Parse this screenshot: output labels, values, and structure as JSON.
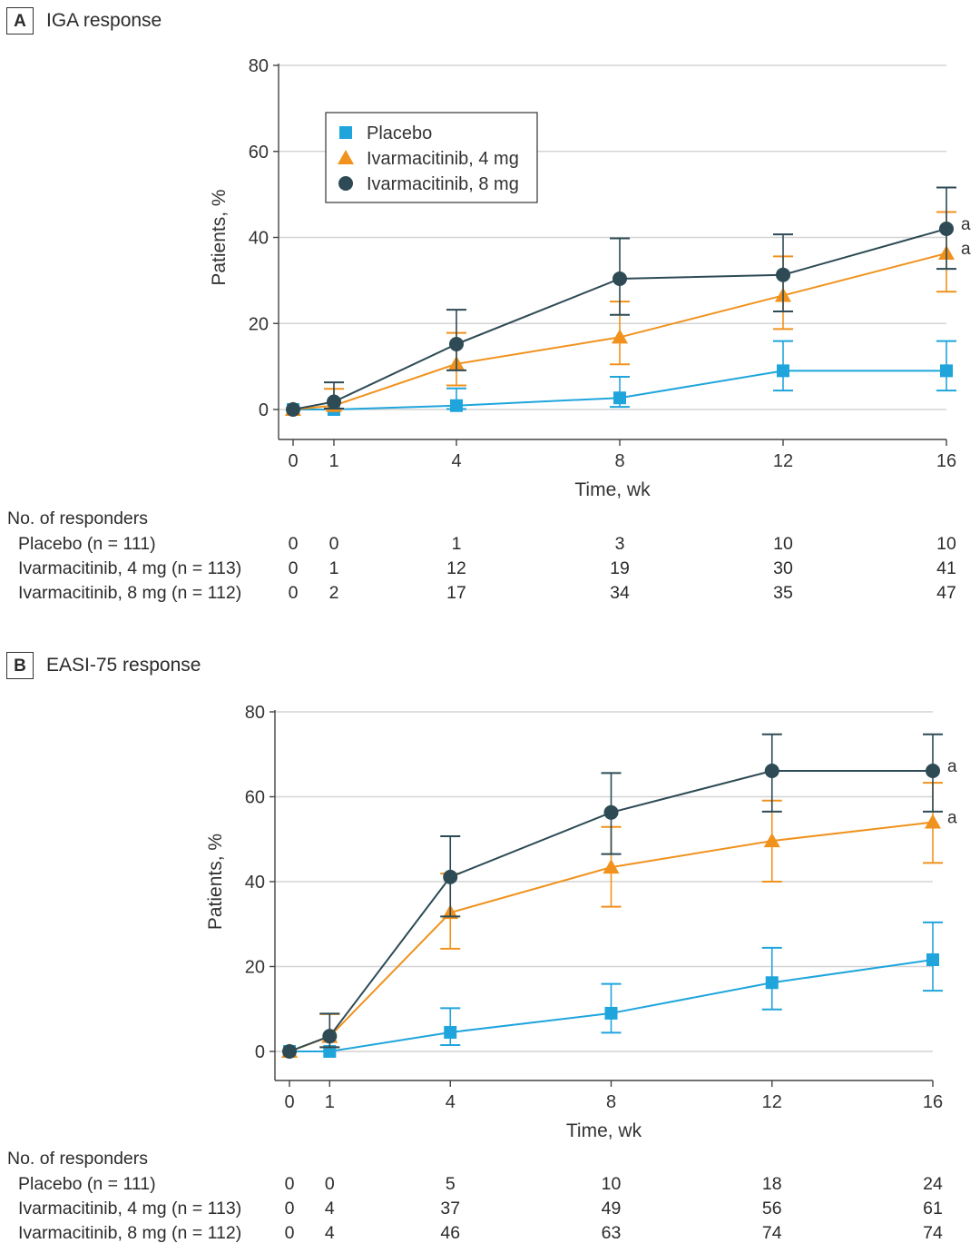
{
  "colors": {
    "placebo": "#1fa5dc",
    "ivar4": "#f0921d",
    "ivar8": "#2d4a55",
    "grid": "#d4d4d4",
    "axis": "#444444"
  },
  "chart_data": [
    {
      "type": "line",
      "panel_letter": "A",
      "title": "IGA response",
      "xlabel": "Time, wk",
      "ylabel": "Patients, %",
      "x": [
        0,
        1,
        4,
        8,
        12,
        16
      ],
      "xlim": [
        0,
        16
      ],
      "ylim": [
        -7,
        80
      ],
      "yticks": [
        0,
        20,
        40,
        60,
        80
      ],
      "grid": true,
      "legend_position": "top-left",
      "series": [
        {
          "name": "Placebo",
          "marker": "square",
          "color": "#1fa5dc",
          "values": [
            0,
            0,
            0.9,
            2.7,
            9.0,
            9.0
          ],
          "err_low": [
            0,
            0,
            0.1,
            0.6,
            4.4,
            4.4
          ],
          "err_high": [
            0,
            0,
            4.9,
            7.6,
            15.9,
            15.9
          ]
        },
        {
          "name": "Ivarmacitinib, 4 mg",
          "marker": "triangle",
          "color": "#f0921d",
          "values": [
            0,
            0.9,
            10.6,
            16.8,
            26.5,
            36.3
          ],
          "err_low": [
            0,
            0.1,
            5.6,
            10.5,
            18.7,
            27.4
          ],
          "err_high": [
            0,
            4.8,
            17.8,
            25.1,
            35.6,
            45.9
          ],
          "annotation": "a"
        },
        {
          "name": "Ivarmacitinib, 8 mg",
          "marker": "circle",
          "color": "#2d4a55",
          "values": [
            0,
            1.8,
            15.2,
            30.4,
            31.3,
            42.0
          ],
          "err_low": [
            0,
            0.2,
            9.1,
            22.0,
            22.8,
            32.7
          ],
          "err_high": [
            0,
            6.3,
            23.2,
            39.8,
            40.7,
            51.6
          ],
          "annotation": "a"
        }
      ],
      "responders": {
        "heading": "No. of responders",
        "rows": [
          {
            "label": "Placebo (n = 111)",
            "values": [
              "0",
              "0",
              "1",
              "3",
              "10",
              "10"
            ]
          },
          {
            "label": "Ivarmacitinib, 4 mg (n = 113)",
            "values": [
              "0",
              "1",
              "12",
              "19",
              "30",
              "41"
            ]
          },
          {
            "label": "Ivarmacitinib, 8 mg (n = 112)",
            "values": [
              "0",
              "2",
              "17",
              "34",
              "35",
              "47"
            ]
          }
        ]
      }
    },
    {
      "type": "line",
      "panel_letter": "B",
      "title": "EASI-75 response",
      "xlabel": "Time, wk",
      "ylabel": "Patients, %",
      "x": [
        0,
        1,
        4,
        8,
        12,
        16
      ],
      "xlim": [
        0,
        16
      ],
      "ylim": [
        -7,
        80
      ],
      "yticks": [
        0,
        20,
        40,
        60,
        80
      ],
      "grid": true,
      "legend_position": "none",
      "series": [
        {
          "name": "Placebo",
          "marker": "square",
          "color": "#1fa5dc",
          "values": [
            0,
            0,
            4.5,
            9.0,
            16.2,
            21.6
          ],
          "err_low": [
            0,
            0,
            1.5,
            4.4,
            9.9,
            14.3
          ],
          "err_high": [
            0,
            0,
            10.2,
            15.9,
            24.4,
            30.4
          ]
        },
        {
          "name": "Ivarmacitinib, 4 mg",
          "marker": "triangle",
          "color": "#f0921d",
          "values": [
            0,
            3.5,
            32.7,
            43.4,
            49.6,
            54.0
          ],
          "err_low": [
            0,
            1.0,
            24.2,
            34.1,
            40.0,
            44.4
          ],
          "err_high": [
            0,
            8.8,
            41.9,
            52.9,
            59.1,
            63.3
          ],
          "annotation": "a"
        },
        {
          "name": "Ivarmacitinib, 8 mg",
          "marker": "circle",
          "color": "#2d4a55",
          "values": [
            0,
            3.6,
            41.1,
            56.3,
            66.1,
            66.1
          ],
          "err_low": [
            0,
            1.0,
            31.8,
            46.5,
            56.5,
            56.5
          ],
          "err_high": [
            0,
            8.9,
            50.7,
            65.6,
            74.7,
            74.7
          ],
          "annotation": "a"
        }
      ],
      "responders": {
        "heading": "No. of responders",
        "rows": [
          {
            "label": "Placebo (n = 111)",
            "values": [
              "0",
              "0",
              "5",
              "10",
              "18",
              "24"
            ]
          },
          {
            "label": "Ivarmacitinib, 4 mg (n = 113)",
            "values": [
              "0",
              "4",
              "37",
              "49",
              "56",
              "61"
            ]
          },
          {
            "label": "Ivarmacitinib, 8 mg (n = 112)",
            "values": [
              "0",
              "4",
              "46",
              "63",
              "74",
              "74"
            ]
          }
        ]
      }
    }
  ]
}
